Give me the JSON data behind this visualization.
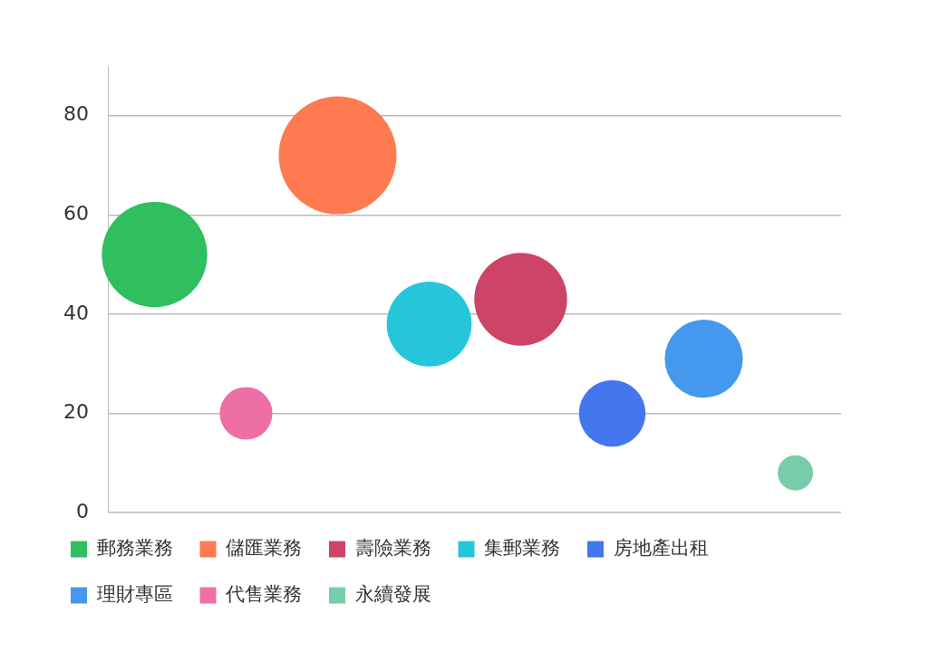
{
  "chart_data": {
    "type": "bubble",
    "categories": [
      null,
      null,
      null,
      null,
      null,
      null,
      null,
      null
    ],
    "ylim": [
      0,
      90
    ],
    "yticks": [
      0,
      20,
      40,
      60,
      80
    ],
    "grid": "y",
    "legend": "bottom",
    "tick_labels": "y",
    "series": [
      {
        "name": "郵務業務",
        "color": "#2fbf5e",
        "values": [
          52,
          null,
          null,
          null,
          null,
          null,
          null,
          null
        ],
        "sizes": [
          0.8,
          null,
          null,
          null,
          null,
          null,
          null,
          null
        ]
      },
      {
        "name": "儲匯業務",
        "color": "#ff7a50",
        "values": [
          null,
          null,
          72,
          null,
          null,
          null,
          null,
          null
        ],
        "sizes": [
          null,
          null,
          1,
          null,
          null,
          null,
          null,
          null
        ]
      },
      {
        "name": "壽險業務",
        "color": "#cc4466",
        "values": [
          null,
          null,
          null,
          null,
          43,
          null,
          null,
          null
        ],
        "sizes": [
          null,
          null,
          null,
          null,
          0.62,
          null,
          null,
          null
        ]
      },
      {
        "name": "集郵業務",
        "color": "#26c6da",
        "values": [
          null,
          null,
          null,
          38,
          null,
          null,
          null,
          null
        ],
        "sizes": [
          null,
          null,
          null,
          0.52,
          null,
          null,
          null,
          null
        ]
      },
      {
        "name": "房地產出租",
        "color": "#4477ee",
        "values": [
          null,
          null,
          null,
          null,
          null,
          20,
          null,
          null
        ],
        "sizes": [
          null,
          null,
          null,
          null,
          null,
          0.32,
          null,
          null
        ]
      },
      {
        "name": "理財專區",
        "color": "#4499ee",
        "values": [
          null,
          null,
          null,
          null,
          null,
          null,
          31,
          null
        ],
        "sizes": [
          null,
          null,
          null,
          null,
          null,
          null,
          0.44,
          null
        ]
      },
      {
        "name": "代售業務",
        "color": "#ee6fa6",
        "values": [
          null,
          20,
          null,
          null,
          null,
          null,
          null,
          null
        ],
        "sizes": [
          null,
          0.2,
          null,
          null,
          null,
          null,
          null,
          null
        ]
      },
      {
        "name": "永續發展",
        "color": "#77ccaa",
        "values": [
          null,
          null,
          null,
          null,
          null,
          null,
          null,
          8
        ],
        "sizes": [
          null,
          null,
          null,
          null,
          null,
          null,
          null,
          0.09
        ]
      }
    ]
  }
}
